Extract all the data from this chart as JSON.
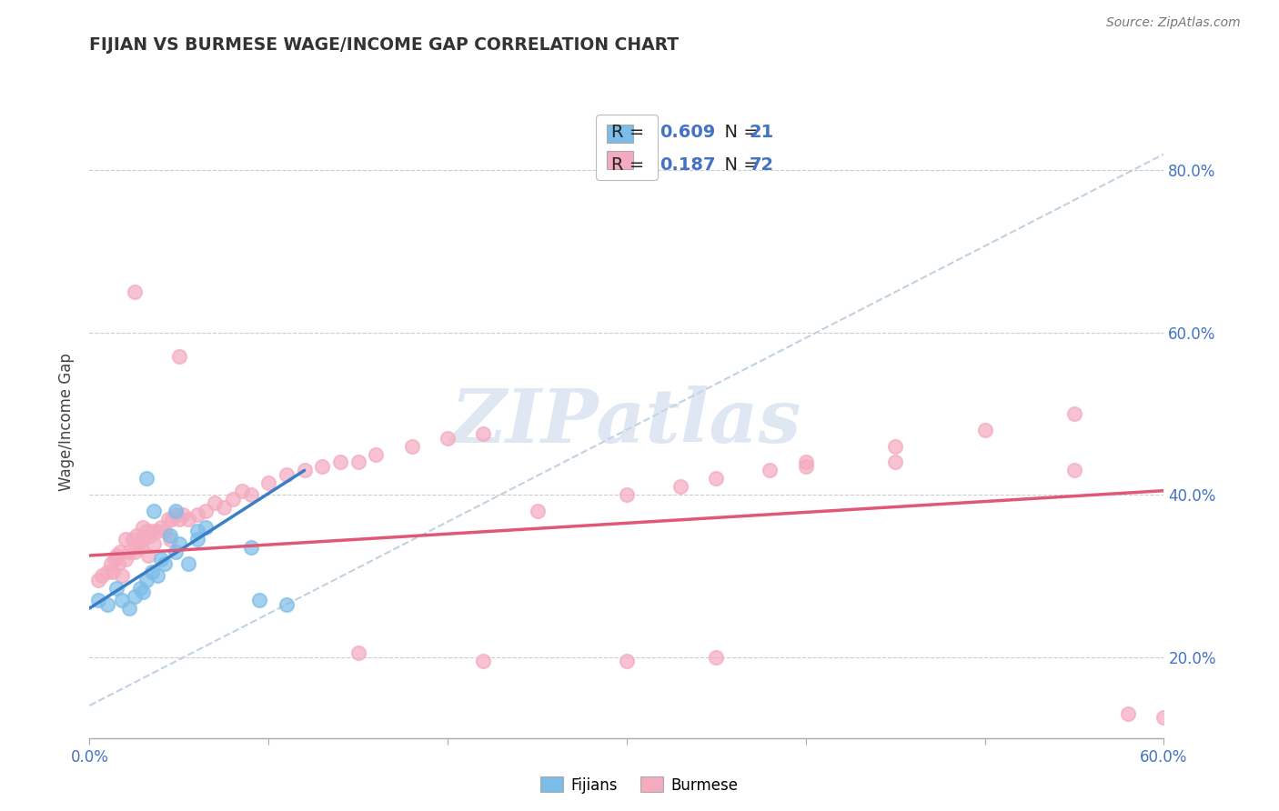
{
  "title": "FIJIAN VS BURMESE WAGE/INCOME GAP CORRELATION CHART",
  "source_text": "Source: ZipAtlas.com",
  "ylabel": "Wage/Income Gap",
  "xlim": [
    0.0,
    0.6
  ],
  "ylim": [
    0.1,
    0.88
  ],
  "xticks": [
    0.0,
    0.1,
    0.2,
    0.3,
    0.4,
    0.5,
    0.6
  ],
  "yticks": [
    0.2,
    0.4,
    0.6,
    0.8
  ],
  "ytick_labels": [
    "20.0%",
    "40.0%",
    "60.0%",
    "80.0%"
  ],
  "fijian_color": "#7BBDE8",
  "burmese_color": "#F4AABF",
  "fijian_line_color": "#3A7EC6",
  "burmese_line_color": "#E05878",
  "ref_line_color": "#BBCCDD",
  "watermark_color": "#C8D8EA",
  "fijian_x": [
    0.005,
    0.01,
    0.015,
    0.018,
    0.022,
    0.025,
    0.028,
    0.03,
    0.032,
    0.035,
    0.038,
    0.04,
    0.042,
    0.045,
    0.048,
    0.05,
    0.055,
    0.06,
    0.065,
    0.095,
    0.11,
    0.032,
    0.036,
    0.048,
    0.06,
    0.09
  ],
  "fijian_y": [
    0.27,
    0.265,
    0.285,
    0.27,
    0.26,
    0.275,
    0.285,
    0.28,
    0.295,
    0.305,
    0.3,
    0.32,
    0.315,
    0.35,
    0.33,
    0.34,
    0.315,
    0.345,
    0.36,
    0.27,
    0.265,
    0.42,
    0.38,
    0.38,
    0.355,
    0.335
  ],
  "burmese_x": [
    0.005,
    0.007,
    0.01,
    0.012,
    0.013,
    0.014,
    0.015,
    0.016,
    0.017,
    0.018,
    0.02,
    0.02,
    0.022,
    0.024,
    0.025,
    0.026,
    0.027,
    0.028,
    0.03,
    0.03,
    0.032,
    0.033,
    0.034,
    0.035,
    0.036,
    0.038,
    0.04,
    0.042,
    0.044,
    0.045,
    0.046,
    0.048,
    0.05,
    0.052,
    0.055,
    0.06,
    0.065,
    0.07,
    0.075,
    0.08,
    0.085,
    0.09,
    0.1,
    0.11,
    0.12,
    0.13,
    0.14,
    0.15,
    0.16,
    0.18,
    0.2,
    0.22,
    0.25,
    0.3,
    0.33,
    0.35,
    0.38,
    0.4,
    0.45,
    0.5,
    0.55,
    0.6,
    0.025,
    0.05,
    0.15,
    0.22,
    0.3,
    0.35,
    0.4,
    0.45,
    0.55,
    0.58
  ],
  "burmese_y": [
    0.295,
    0.3,
    0.305,
    0.315,
    0.305,
    0.32,
    0.325,
    0.315,
    0.33,
    0.3,
    0.32,
    0.345,
    0.33,
    0.345,
    0.33,
    0.35,
    0.34,
    0.335,
    0.345,
    0.36,
    0.355,
    0.325,
    0.35,
    0.355,
    0.34,
    0.355,
    0.36,
    0.355,
    0.37,
    0.345,
    0.37,
    0.375,
    0.37,
    0.375,
    0.37,
    0.375,
    0.38,
    0.39,
    0.385,
    0.395,
    0.405,
    0.4,
    0.415,
    0.425,
    0.43,
    0.435,
    0.44,
    0.44,
    0.45,
    0.46,
    0.47,
    0.475,
    0.38,
    0.4,
    0.41,
    0.42,
    0.43,
    0.44,
    0.46,
    0.48,
    0.5,
    0.125,
    0.65,
    0.57,
    0.205,
    0.195,
    0.195,
    0.2,
    0.435,
    0.44,
    0.43,
    0.13
  ],
  "ref_line_x": [
    0.0,
    0.6
  ],
  "ref_line_y": [
    0.14,
    0.82
  ]
}
